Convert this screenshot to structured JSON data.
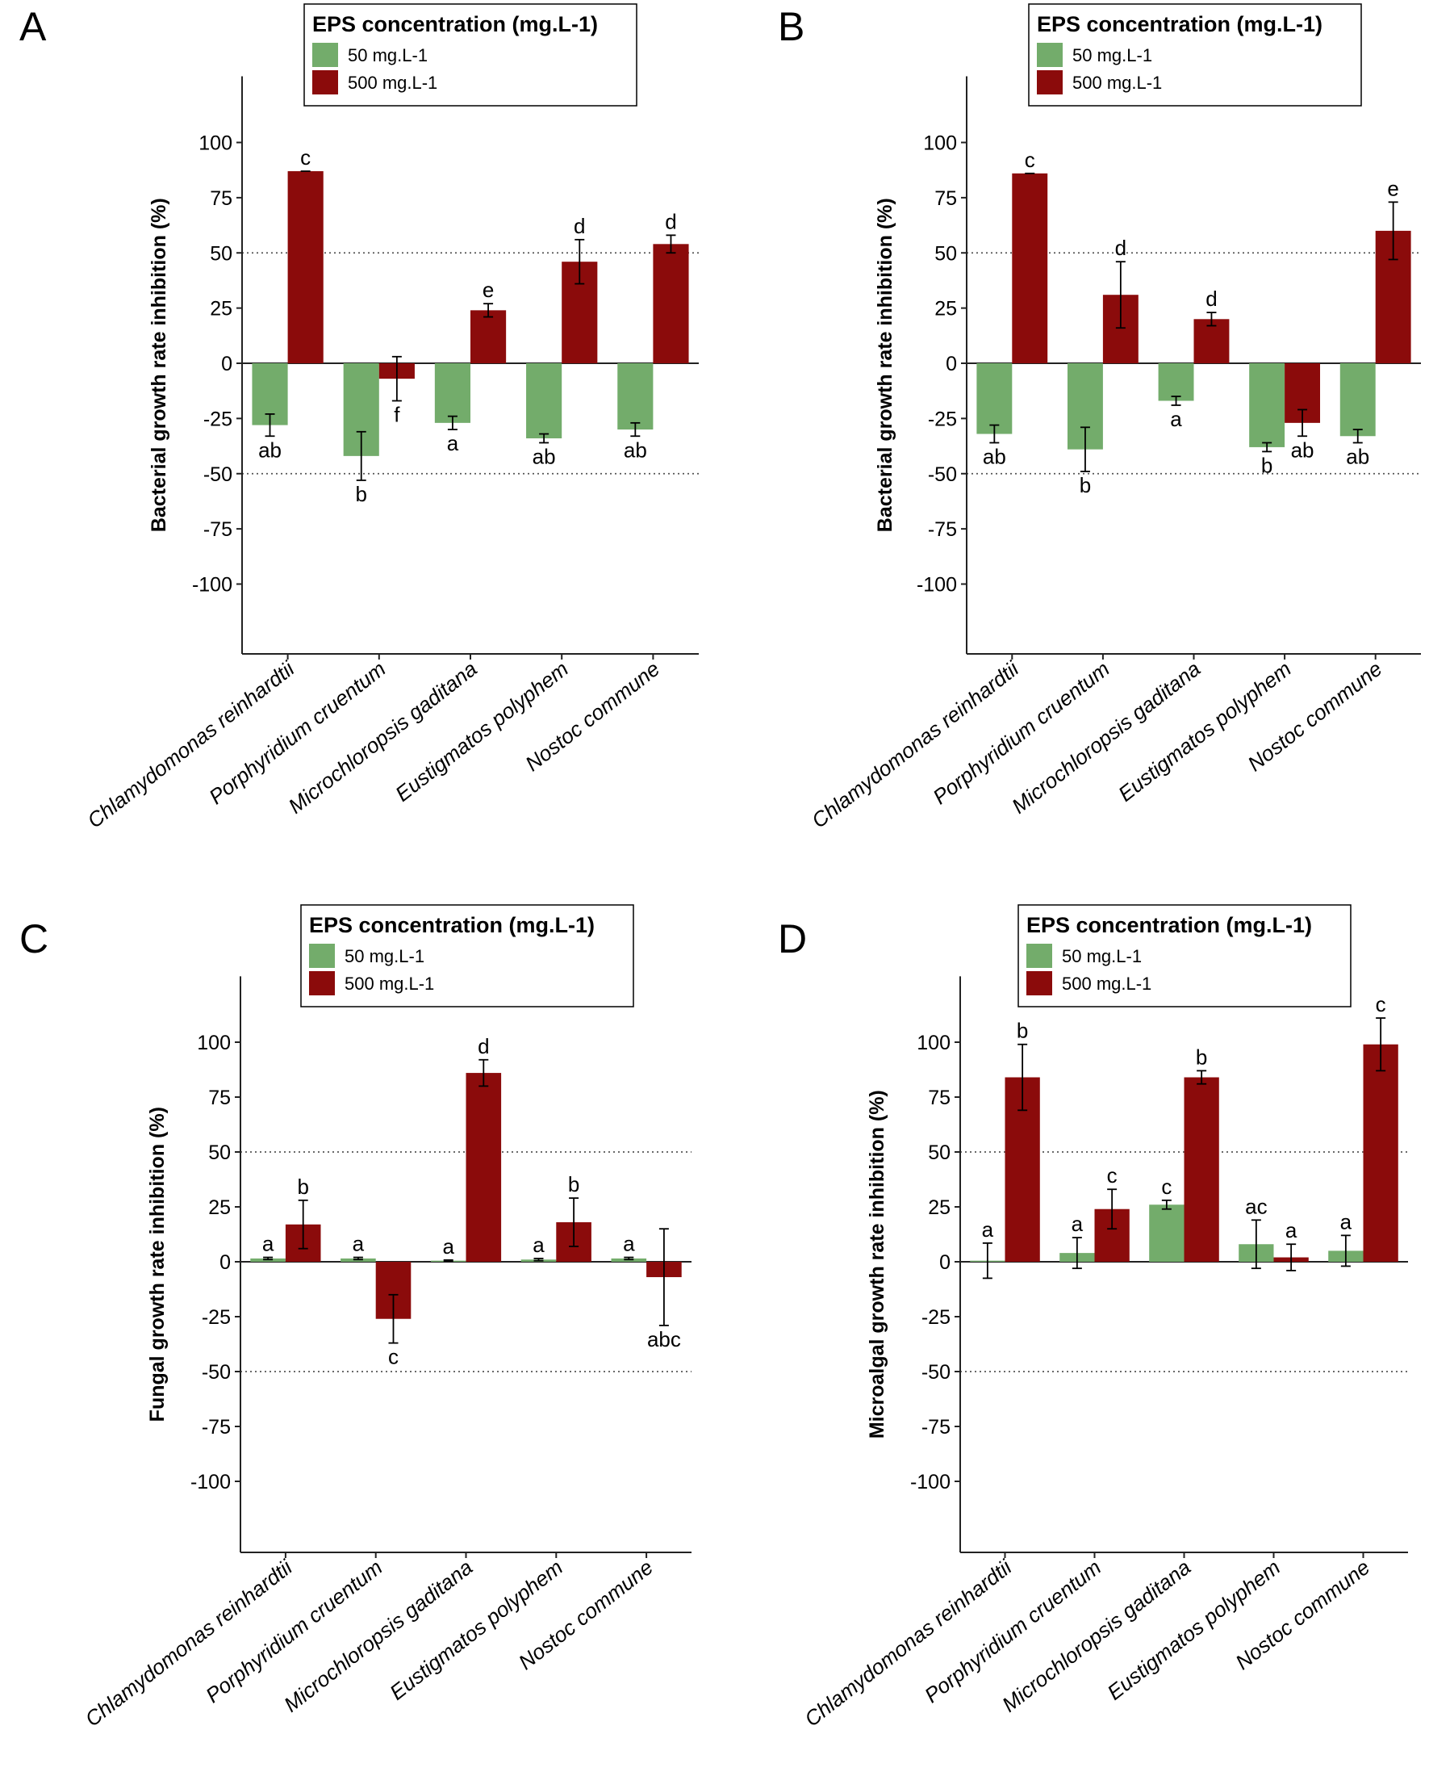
{
  "figure": {
    "panel_labels": [
      "A",
      "B",
      "C",
      "D"
    ],
    "legend_title": "EPS concentration (mg.L-1)"
  },
  "colors": {
    "low": "#73ac6b",
    "high": "#8b0b0b",
    "axis": "#222222",
    "reference": "#555555"
  },
  "chart_data": [
    {
      "panel": "A",
      "type": "bar",
      "title": "",
      "xlabel": "",
      "ylabel": "Bacterial growth rate inhibition (%)",
      "ylim": [
        -130,
        130
      ],
      "yticks": [
        100,
        75,
        50,
        25,
        0,
        -25,
        -50,
        -75,
        -100
      ],
      "reference_lines": [
        50,
        -50
      ],
      "legend": {
        "title": "EPS concentration (mg.L-1)",
        "position": "top"
      },
      "categories": [
        "Chlamydomonas reinhardtii",
        "Porphyridium cruentum",
        "Microchloropsis gaditana",
        "Eustigmatos polyphem",
        "Nostoc commune"
      ],
      "series": [
        {
          "name": "50 mg.L-1",
          "color": "#73ac6b",
          "values": [
            -28,
            -42,
            -27,
            -34,
            -30
          ],
          "errors": [
            5,
            11,
            3,
            2,
            3
          ],
          "letters": [
            "ab",
            "b",
            "a",
            "ab",
            "ab"
          ]
        },
        {
          "name": "500 mg.L-1",
          "color": "#8b0b0b",
          "values": [
            87,
            -7,
            24,
            46,
            54
          ],
          "errors": [
            0,
            10,
            3,
            10,
            4
          ],
          "letters": [
            "c",
            "f",
            "e",
            "d",
            "d"
          ]
        }
      ]
    },
    {
      "panel": "B",
      "type": "bar",
      "title": "",
      "xlabel": "",
      "ylabel": "Bacterial growth rate inhibition (%)",
      "ylim": [
        -130,
        130
      ],
      "yticks": [
        100,
        75,
        50,
        25,
        0,
        -25,
        -50,
        -75,
        -100
      ],
      "reference_lines": [
        50,
        -50
      ],
      "legend": {
        "title": "EPS concentration (mg.L-1)",
        "position": "top"
      },
      "categories": [
        "Chlamydomonas reinhardtii",
        "Porphyridium cruentum",
        "Microchloropsis gaditana",
        "Eustigmatos polyphem",
        "Nostoc commune"
      ],
      "series": [
        {
          "name": "50 mg.L-1",
          "color": "#73ac6b",
          "values": [
            -32,
            -39,
            -17,
            -38,
            -33
          ],
          "errors": [
            4,
            10,
            2,
            2,
            3
          ],
          "letters": [
            "ab",
            "b",
            "a",
            "b",
            "ab"
          ]
        },
        {
          "name": "500 mg.L-1",
          "color": "#8b0b0b",
          "values": [
            86,
            31,
            20,
            -27,
            60
          ],
          "errors": [
            0,
            15,
            3,
            6,
            13
          ],
          "letters": [
            "c",
            "d",
            "d",
            "ab",
            "e"
          ]
        }
      ]
    },
    {
      "panel": "C",
      "type": "bar",
      "title": "",
      "xlabel": "",
      "ylabel": "Fungal growth rate inhibition (%)",
      "ylim": [
        -130,
        130
      ],
      "yticks": [
        100,
        75,
        50,
        25,
        0,
        -25,
        -50,
        -75,
        -100
      ],
      "reference_lines": [
        50,
        -50
      ],
      "legend": {
        "title": "EPS concentration (mg.L-1)",
        "position": "top"
      },
      "categories": [
        "Chlamydomonas reinhardtii",
        "Porphyridium cruentum",
        "Microchloropsis gaditana",
        "Eustigmatos polyphem",
        "Nostoc commune"
      ],
      "series": [
        {
          "name": "50 mg.L-1",
          "color": "#73ac6b",
          "values": [
            1.5,
            1.5,
            0.5,
            1,
            1.5
          ],
          "errors": [
            0.5,
            0.5,
            0.3,
            0.5,
            0.5
          ],
          "letters": [
            "a",
            "a",
            "a",
            "a",
            "a"
          ]
        },
        {
          "name": "500 mg.L-1",
          "color": "#8b0b0b",
          "values": [
            17,
            -26,
            86,
            18,
            -7
          ],
          "errors": [
            11,
            11,
            6,
            11,
            22
          ],
          "letters": [
            "b",
            "c",
            "d",
            "b",
            "abc"
          ]
        }
      ]
    },
    {
      "panel": "D",
      "type": "bar",
      "title": "",
      "xlabel": "",
      "ylabel": "Microalgal growth rate inhibition (%)",
      "ylim": [
        -130,
        130
      ],
      "yticks": [
        100,
        75,
        50,
        25,
        0,
        -25,
        -50,
        -75,
        -100
      ],
      "reference_lines": [
        50,
        -50
      ],
      "legend": {
        "title": "EPS concentration (mg.L-1)",
        "position": "top"
      },
      "categories": [
        "Chlamydomonas reinhardtii",
        "Porphyridium cruentum",
        "Microchloropsis gaditana",
        "Eustigmatos polyphem",
        "Nostoc commune"
      ],
      "series": [
        {
          "name": "50 mg.L-1",
          "color": "#73ac6b",
          "values": [
            0.5,
            4,
            26,
            8,
            5
          ],
          "errors": [
            8,
            7,
            2,
            11,
            7
          ],
          "letters": [
            "a",
            "a",
            "c",
            "ac",
            "a"
          ]
        },
        {
          "name": "500 mg.L-1",
          "color": "#8b0b0b",
          "values": [
            84,
            24,
            84,
            2,
            99
          ],
          "errors": [
            15,
            9,
            3,
            6,
            12
          ],
          "letters": [
            "b",
            "c",
            "b",
            "a",
            "c"
          ]
        }
      ]
    }
  ]
}
